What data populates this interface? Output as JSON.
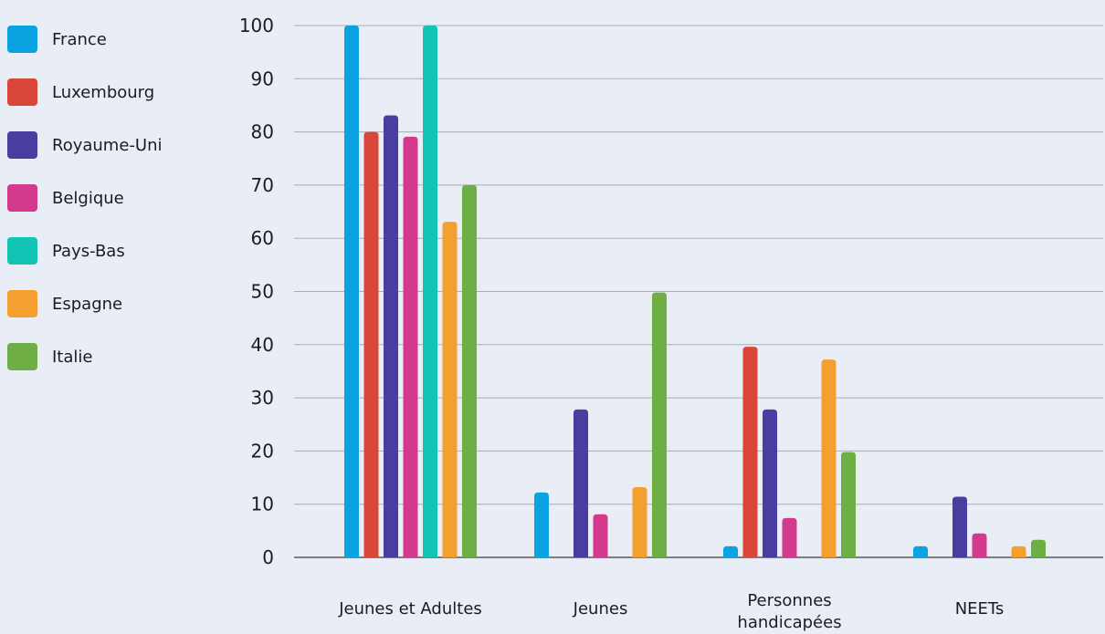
{
  "chart_data": {
    "type": "bar",
    "categories": [
      "Jeunes et Adultes",
      "Jeunes",
      "Personnes handicapées",
      "NEETs"
    ],
    "category_lines": [
      [
        "Jeunes et Adultes"
      ],
      [
        "Jeunes"
      ],
      [
        "Personnes",
        "handicapées"
      ],
      [
        "NEETs"
      ]
    ],
    "series": [
      {
        "name": "France",
        "color": "#0aa2e0",
        "values": [
          100,
          12.2,
          2.1,
          2.1
        ]
      },
      {
        "name": "Luxembourg",
        "color": "#d9473a",
        "values": [
          80,
          0,
          39.6,
          0
        ]
      },
      {
        "name": "Royaume-Uni",
        "color": "#4a3da0",
        "values": [
          83.1,
          27.8,
          27.8,
          11.4
        ]
      },
      {
        "name": "Belgique",
        "color": "#d43a8c",
        "values": [
          79.1,
          8.1,
          7.4,
          4.5
        ]
      },
      {
        "name": "Pays-Bas",
        "color": "#11c4b3",
        "values": [
          100,
          0,
          0,
          0
        ]
      },
      {
        "name": "Espagne",
        "color": "#f4a031",
        "values": [
          63.1,
          13.2,
          37.2,
          2.1
        ]
      },
      {
        "name": "Italie",
        "color": "#6fae44",
        "values": [
          70,
          49.8,
          19.8,
          3.3
        ]
      }
    ],
    "yticks": [
      0,
      10,
      20,
      30,
      40,
      50,
      60,
      70,
      80,
      90,
      100
    ],
    "ylim": [
      0,
      100
    ],
    "xlabel": "",
    "ylabel": "",
    "title": "",
    "grid": true,
    "legend_position": "left"
  }
}
